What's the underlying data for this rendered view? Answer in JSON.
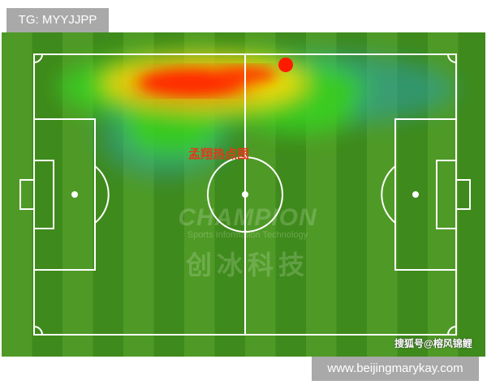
{
  "overlay_tag": "TG: MYYJJPP",
  "website": "www.beijingmarykay.com",
  "source_credit": "搜狐号@榕风锦鲤",
  "heatmap_label": "孟翔热点图",
  "watermark": {
    "brand": "CHAMPION",
    "tagline": "Sports Information Technology",
    "chinese": "创冰科技"
  },
  "colors": {
    "pitch_dark": "#3f8a1c",
    "pitch_light": "#4f9a26",
    "lines": "#ffffff",
    "heat_hot": "#ff2a00",
    "heat_warm": "#ffe600",
    "heat_mid": "#38d020",
    "heat_cool": "#2aa0b0"
  }
}
